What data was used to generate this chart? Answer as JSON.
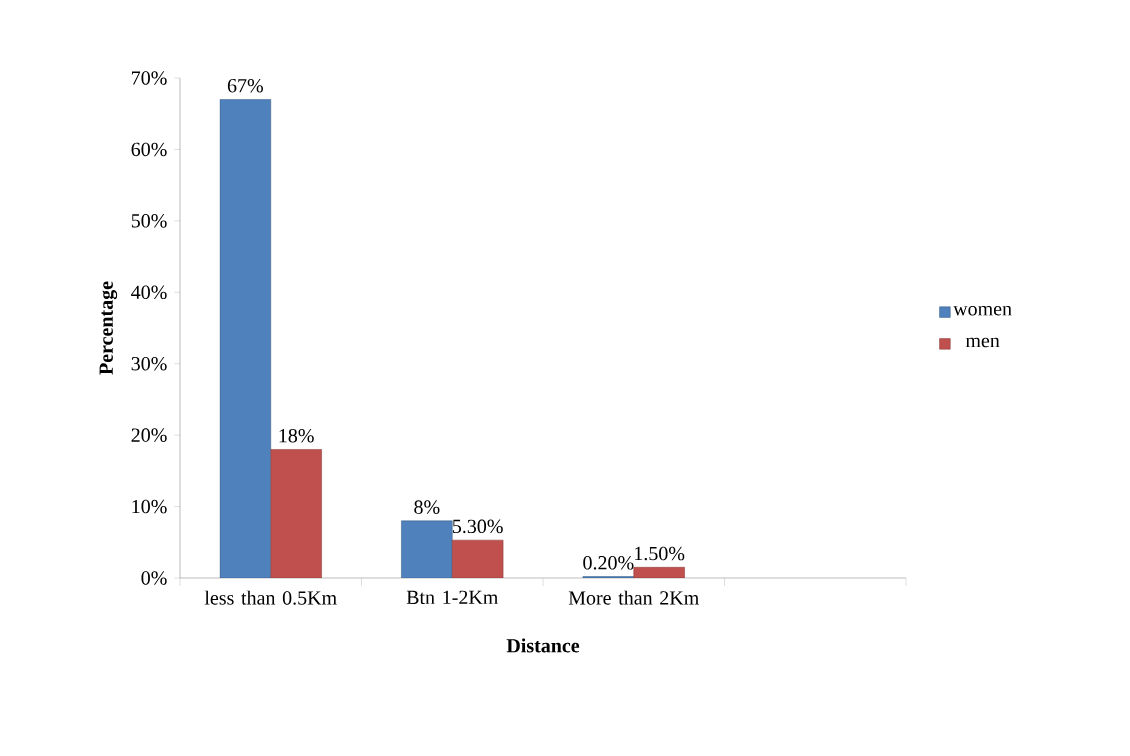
{
  "chart_data": {
    "type": "bar",
    "xlabel": "Distance",
    "ylabel": "Percentage",
    "categories": [
      "less than 0.5Km",
      "Btn 1-2Km",
      "More than 2Km",
      null
    ],
    "series": [
      {
        "name": "women",
        "color": "#4f81bd",
        "values": [
          67,
          8,
          0.2,
          null
        ],
        "value_labels": [
          "67%",
          "8%",
          "0.20%",
          null
        ]
      },
      {
        "name": "men",
        "color": "#c0504d",
        "values": [
          18,
          5.3,
          1.5,
          null
        ],
        "value_labels": [
          "18%",
          "5.30%",
          "1.50%",
          null
        ]
      }
    ],
    "ylim": [
      0,
      70
    ],
    "yticks": [
      {
        "value": 0,
        "label": "0%"
      },
      {
        "value": 10,
        "label": "10%"
      },
      {
        "value": 20,
        "label": "20%"
      },
      {
        "value": 30,
        "label": "30%"
      },
      {
        "value": 40,
        "label": "40%"
      },
      {
        "value": 50,
        "label": "50%"
      },
      {
        "value": 60,
        "label": "60%"
      },
      {
        "value": 70,
        "label": "70%"
      }
    ],
    "legend": "right",
    "grid": false
  }
}
